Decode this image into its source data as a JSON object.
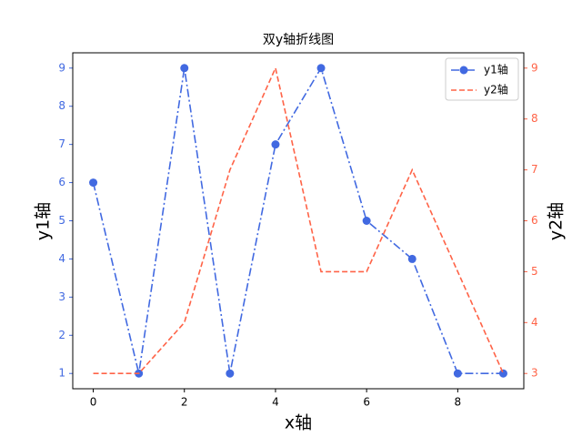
{
  "chart_data": {
    "type": "line",
    "title": "双y轴折线图",
    "x_label": "x轴",
    "y_label": "y1轴",
    "y2_label": "y2轴",
    "x": [
      0,
      1,
      2,
      3,
      4,
      5,
      6,
      7,
      8,
      9
    ],
    "series": [
      {
        "name": "y1轴",
        "color": "#4169e1",
        "values": [
          6,
          1,
          9,
          1,
          7,
          9,
          5,
          4,
          1,
          1
        ],
        "linestyle": "dashdot",
        "marker": true
      },
      {
        "name": "y2轴",
        "color": "#ff6347",
        "values": [
          3,
          3,
          4,
          7,
          9,
          5,
          5,
          7,
          5,
          3
        ],
        "axis": "y2",
        "linestyle": "dashed",
        "marker": false
      }
    ],
    "xlim": [
      -0.45,
      9.45
    ],
    "xticks": [
      0,
      2,
      4,
      6,
      8
    ],
    "ylim": [
      0.6,
      9.4
    ],
    "yticks": [
      1,
      2,
      3,
      4,
      5,
      6,
      7,
      8,
      9
    ],
    "y2lim": [
      2.7,
      9.3
    ],
    "y2ticks": [
      3,
      4,
      5,
      6,
      7,
      8,
      9
    ],
    "legend": "upper right"
  }
}
